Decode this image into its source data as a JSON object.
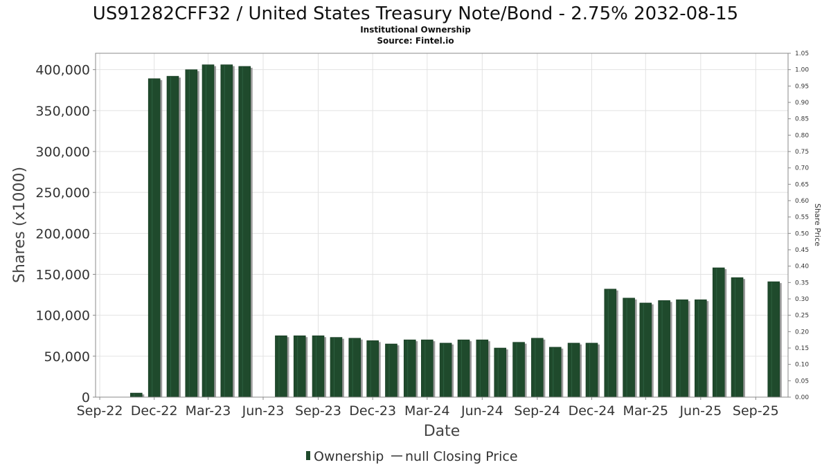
{
  "chart_data": {
    "type": "bar",
    "title": "US91282CFF32 / United States Treasury Note/Bond - 2.75% 2032-08-15",
    "subtitle": "Institutional Ownership",
    "source": "Source: Fintel.io",
    "xlabel": "Date",
    "ylabel": "Shares (x1000)",
    "y2label": "Share Price",
    "ylim": [
      0,
      420000
    ],
    "y2lim": [
      0,
      1.05
    ],
    "y_ticks": [
      0,
      50000,
      100000,
      150000,
      200000,
      250000,
      300000,
      350000,
      400000
    ],
    "y_tick_labels": [
      "0",
      "50,000",
      "100,000",
      "150,000",
      "200,000",
      "250,000",
      "300,000",
      "350,000",
      "400,000"
    ],
    "y2_ticks": [
      "0.00",
      "0.05",
      "0.10",
      "0.15",
      "0.20",
      "0.25",
      "0.30",
      "0.35",
      "0.40",
      "0.45",
      "0.50",
      "0.55",
      "0.60",
      "0.65",
      "0.70",
      "0.75",
      "0.80",
      "0.85",
      "0.90",
      "0.95",
      "1.00",
      "1.05"
    ],
    "x_range": [
      "2022-08-25",
      "2025-10-25"
    ],
    "x_ticks": [
      {
        "label": "Sep-22",
        "date": "2022-09-01"
      },
      {
        "label": "Dec-22",
        "date": "2022-12-01"
      },
      {
        "label": "Mar-23",
        "date": "2023-03-01"
      },
      {
        "label": "Jun-23",
        "date": "2023-06-01"
      },
      {
        "label": "Sep-23",
        "date": "2023-09-01"
      },
      {
        "label": "Dec-23",
        "date": "2023-12-01"
      },
      {
        "label": "Mar-24",
        "date": "2024-03-01"
      },
      {
        "label": "Jun-24",
        "date": "2024-06-01"
      },
      {
        "label": "Sep-24",
        "date": "2024-09-01"
      },
      {
        "label": "Dec-24",
        "date": "2024-12-01"
      },
      {
        "label": "Mar-25",
        "date": "2025-03-01"
      },
      {
        "label": "Jun-25",
        "date": "2025-06-01"
      },
      {
        "label": "Sep-25",
        "date": "2025-09-01"
      }
    ],
    "grid": true,
    "legend_position": "bottom",
    "series": [
      {
        "name": "Ownership",
        "color": "#1f4a2c",
        "x": [
          "2022-11-01",
          "2022-12-01",
          "2023-01-01",
          "2023-02-01",
          "2023-03-01",
          "2023-04-01",
          "2023-05-01",
          "2023-07-01",
          "2023-08-01",
          "2023-09-01",
          "2023-10-01",
          "2023-11-01",
          "2023-12-01",
          "2024-01-01",
          "2024-02-01",
          "2024-03-01",
          "2024-04-01",
          "2024-05-01",
          "2024-06-01",
          "2024-07-01",
          "2024-08-01",
          "2024-09-01",
          "2024-10-01",
          "2024-11-01",
          "2024-12-01",
          "2025-01-01",
          "2025-02-01",
          "2025-03-01",
          "2025-04-01",
          "2025-05-01",
          "2025-06-01",
          "2025-07-01",
          "2025-08-01",
          "2025-10-01"
        ],
        "values": [
          5000,
          389000,
          392000,
          400000,
          406000,
          406000,
          404000,
          75000,
          75000,
          75000,
          73000,
          72000,
          69000,
          65000,
          70000,
          70000,
          66000,
          70000,
          70000,
          60000,
          67000,
          72000,
          61000,
          66000,
          66000,
          132000,
          121000,
          115000,
          118000,
          119000,
          119000,
          158000,
          146000,
          141000
        ]
      },
      {
        "name": "null Closing Price",
        "color": "#333333",
        "x": [],
        "values": []
      }
    ]
  }
}
